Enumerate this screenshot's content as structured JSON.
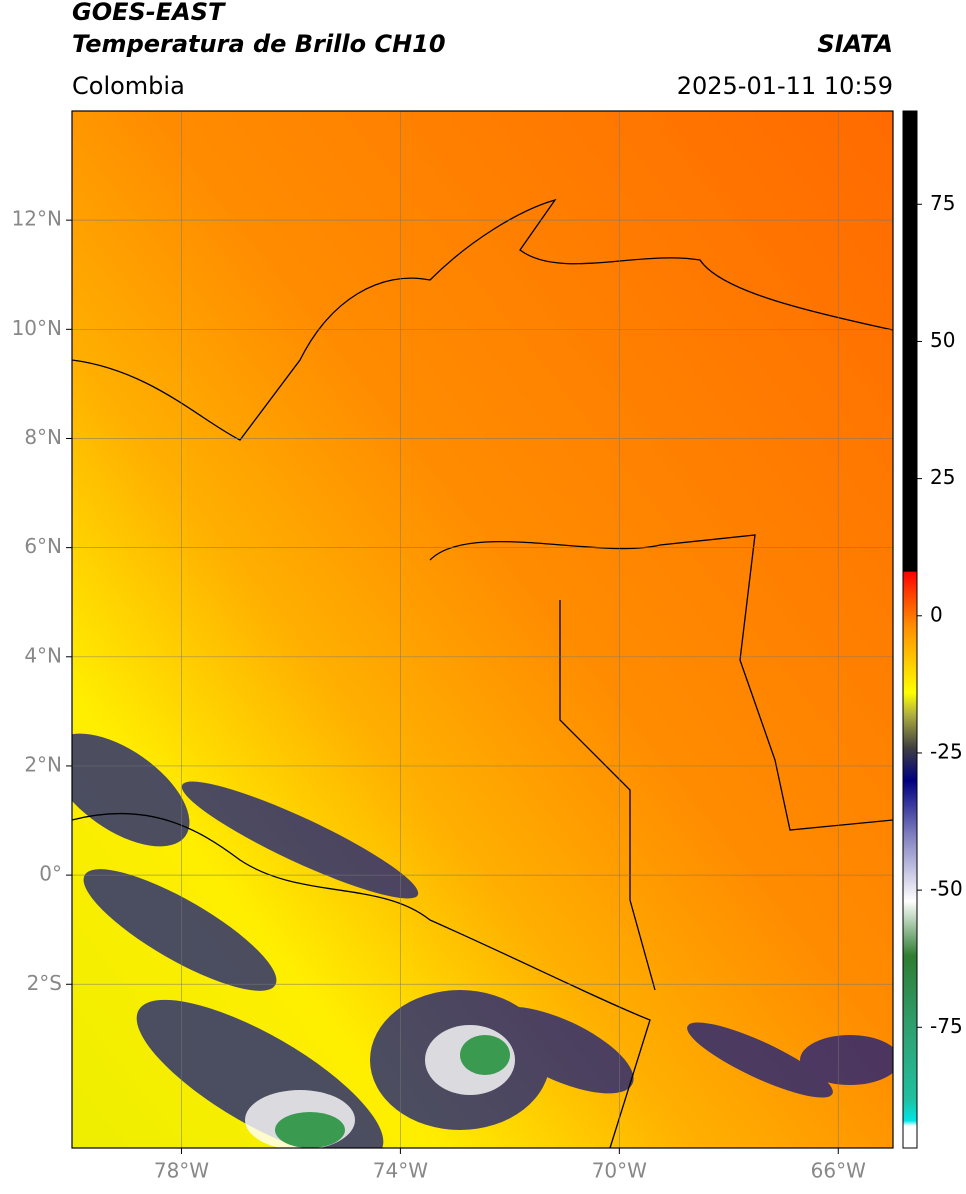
{
  "header": {
    "title": "GOES-EAST",
    "subtitle": "Temperatura de Brillo CH10",
    "source": "SIATA",
    "region": "Colombia",
    "datetime": "2025-01-11 10:59"
  },
  "map": {
    "xlim": [
      -80,
      -65
    ],
    "ylim": [
      -5,
      14
    ],
    "grid": true,
    "xticks": [
      {
        "value": -78,
        "label": "78°W"
      },
      {
        "value": -74,
        "label": "74°W"
      },
      {
        "value": -70,
        "label": "70°W"
      },
      {
        "value": -66,
        "label": "66°W"
      }
    ],
    "yticks": [
      {
        "value": 12,
        "label": "12°N"
      },
      {
        "value": 10,
        "label": "10°N"
      },
      {
        "value": 8,
        "label": "8°N"
      },
      {
        "value": 6,
        "label": "6°N"
      },
      {
        "value": 4,
        "label": "4°N"
      },
      {
        "value": 2,
        "label": "2°N"
      },
      {
        "value": 0,
        "label": "0°"
      },
      {
        "value": -2,
        "label": "2°S"
      }
    ]
  },
  "colorbar": {
    "lim": [
      -97,
      92
    ],
    "ticks": [
      75,
      50,
      25,
      0,
      -25,
      -50,
      -75
    ],
    "colormap": [
      {
        "value": -97,
        "color": "#ffffff"
      },
      {
        "value": -93,
        "color": "#ffffff"
      },
      {
        "value": -92,
        "color": "#00e5e5"
      },
      {
        "value": -88,
        "color": "#20c0a0"
      },
      {
        "value": -75,
        "color": "#30a070"
      },
      {
        "value": -62,
        "color": "#2e7d32"
      },
      {
        "value": -52,
        "color": "#ffffff"
      },
      {
        "value": -40,
        "color": "#8080c0"
      },
      {
        "value": -30,
        "color": "#000080"
      },
      {
        "value": -24,
        "color": "#404040"
      },
      {
        "value": -18,
        "color": "#b0b040"
      },
      {
        "value": -14,
        "color": "#ffff00"
      },
      {
        "value": -2,
        "color": "#ff9000"
      },
      {
        "value": 4,
        "color": "#ff4000"
      },
      {
        "value": 8,
        "color": "#ff0000"
      },
      {
        "value": 8.1,
        "color": "#000000"
      },
      {
        "value": 92,
        "color": "#000000"
      }
    ]
  }
}
